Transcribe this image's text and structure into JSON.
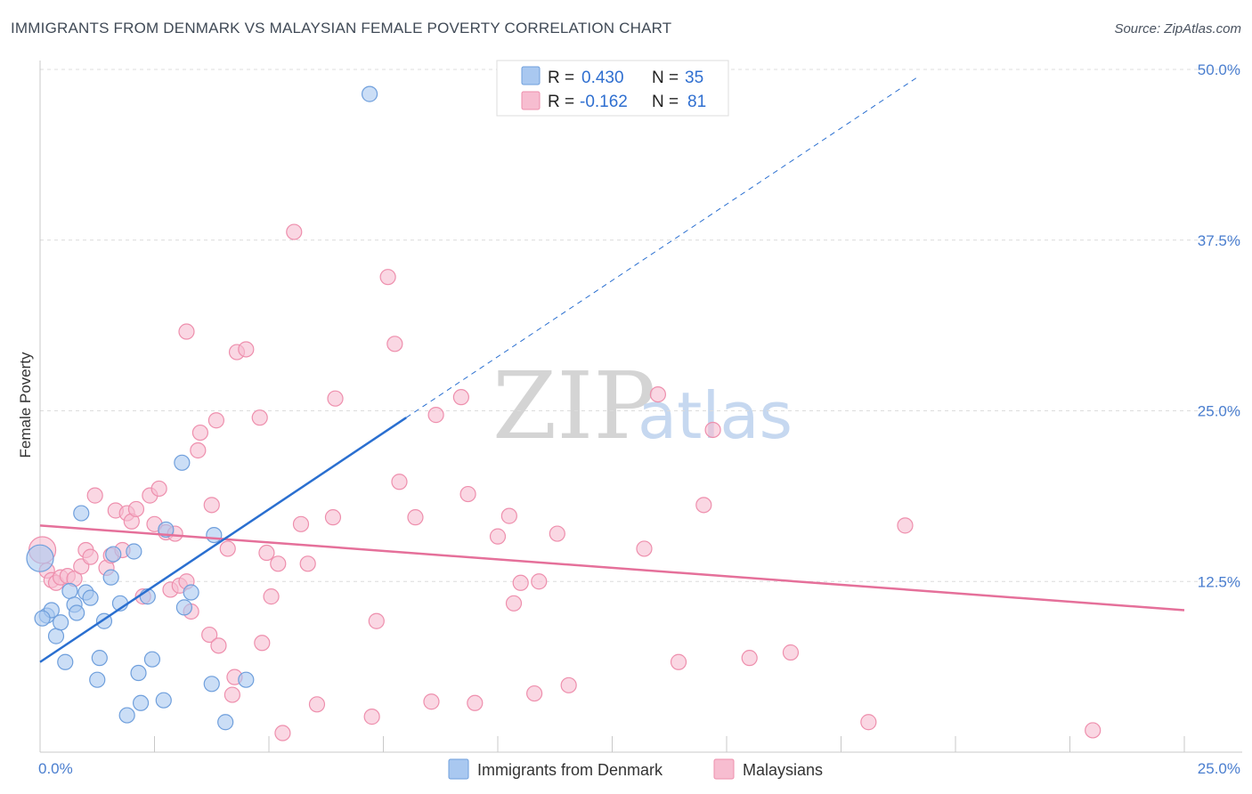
{
  "header": {
    "title": "IMMIGRANTS FROM DENMARK VS MALAYSIAN FEMALE POVERTY CORRELATION CHART",
    "source": "Source: ZipAtlas.com"
  },
  "watermark": {
    "zip": "ZIP",
    "atlas": "atlas"
  },
  "colors": {
    "blue_fill": "#a9c8f0",
    "blue_stroke": "#6f9fdc",
    "blue_line": "#2a6fd0",
    "pink_fill": "#f7bdd0",
    "pink_stroke": "#ee8fad",
    "pink_line": "#e5709a",
    "grid": "#dcdcdc",
    "tick_text": "#4a7ecf"
  },
  "stats": {
    "r_label": "R =",
    "n_label": "N =",
    "rows": [
      {
        "r": "0.430",
        "n": "35"
      },
      {
        "r": "-0.162",
        "n": "81"
      }
    ]
  },
  "chart_data": {
    "type": "scatter",
    "title": "IMMIGRANTS FROM DENMARK VS MALAYSIAN FEMALE POVERTY CORRELATION CHART",
    "xlabel": "",
    "ylabel": "Female Poverty",
    "xlim": [
      0,
      25
    ],
    "ylim": [
      0,
      50
    ],
    "x_tick_labels": [
      "0.0%",
      "25.0%"
    ],
    "y_ticks": [
      12.5,
      25.0,
      37.5,
      50.0
    ],
    "y_tick_labels": [
      "12.5%",
      "25.0%",
      "37.5%",
      "50.0%"
    ],
    "legend": [
      "Immigrants from Denmark",
      "Malaysians"
    ],
    "legend_position": "bottom",
    "series": [
      {
        "name": "Immigrants from Denmark",
        "r": 0.43,
        "n": 35,
        "trend": {
          "x0": 0.0,
          "y0": 6.6,
          "x1": 8.0,
          "y1": 24.5,
          "dash_to_x": 19.2,
          "dash_to_y": 49.5
        },
        "points": [
          [
            0.0,
            14.2
          ],
          [
            0.15,
            10.0
          ],
          [
            0.25,
            10.4
          ],
          [
            0.35,
            8.5
          ],
          [
            0.45,
            9.5
          ],
          [
            0.55,
            6.6
          ],
          [
            0.65,
            11.8
          ],
          [
            0.75,
            10.8
          ],
          [
            0.8,
            10.2
          ],
          [
            0.9,
            17.5
          ],
          [
            1.0,
            11.7
          ],
          [
            1.1,
            11.3
          ],
          [
            1.25,
            5.3
          ],
          [
            1.3,
            6.9
          ],
          [
            1.4,
            9.6
          ],
          [
            1.55,
            12.8
          ],
          [
            1.6,
            14.5
          ],
          [
            1.75,
            10.9
          ],
          [
            1.9,
            2.7
          ],
          [
            2.05,
            14.7
          ],
          [
            2.15,
            5.8
          ],
          [
            2.2,
            3.6
          ],
          [
            2.35,
            11.4
          ],
          [
            2.45,
            6.8
          ],
          [
            2.7,
            3.8
          ],
          [
            2.75,
            16.3
          ],
          [
            3.1,
            21.2
          ],
          [
            3.15,
            10.6
          ],
          [
            3.3,
            11.7
          ],
          [
            3.75,
            5.0
          ],
          [
            3.8,
            15.9
          ],
          [
            4.05,
            2.2
          ],
          [
            4.5,
            5.3
          ],
          [
            7.2,
            48.2
          ],
          [
            0.05,
            9.8
          ]
        ]
      },
      {
        "name": "Malaysians",
        "r": -0.162,
        "n": 81,
        "trend": {
          "x0": 0.0,
          "y0": 16.6,
          "x1": 25.0,
          "y1": 10.4
        },
        "points": [
          [
            0.05,
            14.8
          ],
          [
            0.15,
            13.3
          ],
          [
            0.25,
            12.6
          ],
          [
            0.35,
            12.4
          ],
          [
            0.45,
            12.8
          ],
          [
            0.6,
            12.9
          ],
          [
            0.75,
            12.7
          ],
          [
            0.9,
            13.6
          ],
          [
            1.0,
            14.8
          ],
          [
            1.1,
            14.3
          ],
          [
            1.2,
            18.8
          ],
          [
            1.45,
            13.5
          ],
          [
            1.55,
            14.4
          ],
          [
            1.65,
            17.7
          ],
          [
            1.8,
            14.8
          ],
          [
            1.9,
            17.5
          ],
          [
            2.0,
            16.9
          ],
          [
            2.1,
            17.8
          ],
          [
            2.25,
            11.4
          ],
          [
            2.4,
            18.8
          ],
          [
            2.5,
            16.7
          ],
          [
            2.6,
            19.3
          ],
          [
            2.75,
            16.1
          ],
          [
            2.85,
            11.9
          ],
          [
            2.95,
            16.0
          ],
          [
            3.05,
            12.2
          ],
          [
            3.2,
            30.8
          ],
          [
            3.3,
            10.3
          ],
          [
            3.45,
            22.1
          ],
          [
            3.5,
            23.4
          ],
          [
            3.7,
            8.6
          ],
          [
            3.75,
            18.1
          ],
          [
            3.85,
            24.3
          ],
          [
            3.9,
            7.8
          ],
          [
            4.1,
            14.9
          ],
          [
            4.2,
            4.2
          ],
          [
            4.25,
            5.5
          ],
          [
            4.3,
            29.3
          ],
          [
            4.5,
            29.5
          ],
          [
            4.8,
            24.5
          ],
          [
            4.85,
            8.0
          ],
          [
            4.95,
            14.6
          ],
          [
            5.05,
            11.4
          ],
          [
            5.2,
            13.8
          ],
          [
            5.3,
            1.4
          ],
          [
            5.55,
            38.1
          ],
          [
            5.7,
            16.7
          ],
          [
            5.85,
            13.8
          ],
          [
            6.05,
            3.5
          ],
          [
            6.4,
            17.2
          ],
          [
            6.45,
            25.9
          ],
          [
            7.25,
            2.6
          ],
          [
            7.35,
            9.6
          ],
          [
            7.6,
            34.8
          ],
          [
            7.75,
            29.9
          ],
          [
            7.85,
            19.8
          ],
          [
            8.2,
            17.2
          ],
          [
            8.55,
            3.7
          ],
          [
            8.65,
            24.7
          ],
          [
            9.2,
            26.0
          ],
          [
            9.35,
            18.9
          ],
          [
            9.5,
            3.6
          ],
          [
            10.0,
            15.8
          ],
          [
            10.25,
            17.3
          ],
          [
            10.35,
            10.9
          ],
          [
            10.5,
            12.4
          ],
          [
            10.8,
            4.3
          ],
          [
            10.9,
            12.5
          ],
          [
            11.3,
            16.0
          ],
          [
            11.55,
            4.9
          ],
          [
            13.2,
            14.9
          ],
          [
            13.5,
            26.2
          ],
          [
            13.95,
            6.6
          ],
          [
            14.5,
            18.1
          ],
          [
            14.7,
            23.6
          ],
          [
            15.5,
            6.9
          ],
          [
            16.4,
            7.3
          ],
          [
            18.1,
            2.2
          ],
          [
            18.9,
            16.6
          ],
          [
            23.0,
            1.6
          ],
          [
            3.2,
            12.5
          ]
        ]
      }
    ]
  }
}
